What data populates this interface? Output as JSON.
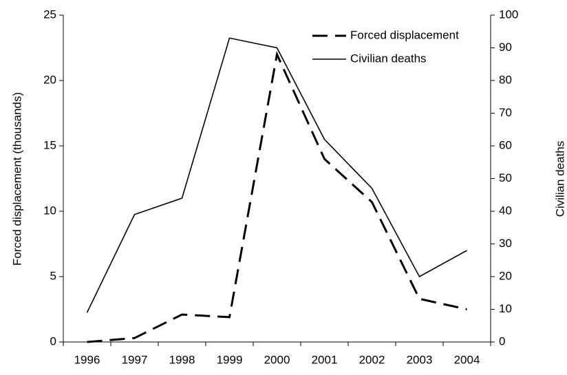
{
  "chart_data": {
    "type": "line",
    "categories": [
      "1996",
      "1997",
      "1998",
      "1999",
      "2000",
      "2001",
      "2002",
      "2003",
      "2004"
    ],
    "series": [
      {
        "name": "Forced displacement",
        "color": "#000000",
        "style": "dashed",
        "axis": "y",
        "values": [
          0,
          0.3,
          2.1,
          1.9,
          22,
          14,
          10.7,
          3.3,
          2.5
        ]
      },
      {
        "name": "Civilian deaths",
        "color": "#000000",
        "style": "solid",
        "axis": "y2",
        "values": [
          9,
          39,
          44,
          93,
          90,
          62,
          47,
          20,
          28
        ]
      }
    ],
    "ylabel": "Forced displacement (thousands)",
    "y2label": "Civilian deaths",
    "ylim": [
      0,
      25
    ],
    "yticks": [
      0,
      5,
      10,
      15,
      20,
      25
    ],
    "y2lim": [
      0,
      100
    ],
    "y2ticks": [
      0,
      10,
      20,
      30,
      40,
      50,
      60,
      70,
      80,
      90,
      100
    ],
    "legend": "upper right",
    "grid": false
  }
}
